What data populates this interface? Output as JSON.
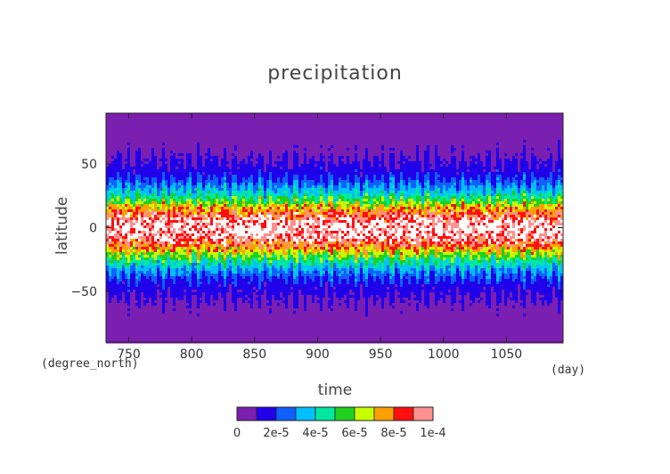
{
  "chart_data": {
    "type": "heatmap",
    "title": "precipitation",
    "xlabel": "time",
    "ylabel": "latitude",
    "x_units": "(day)",
    "y_units": "(degree_north)",
    "xlim": [
      732,
      1095
    ],
    "ylim": [
      -90,
      90
    ],
    "x_ticks": [
      750,
      800,
      850,
      900,
      950,
      1000,
      1050
    ],
    "y_ticks": [
      -50,
      0,
      50
    ],
    "colorbar": {
      "tick_labels": [
        "0",
        "2e-5",
        "4e-5",
        "6e-5",
        "8e-5",
        "1e-4"
      ],
      "levels": [
        0,
        1e-05,
        2e-05,
        3e-05,
        4e-05,
        5e-05,
        6e-05,
        7e-05,
        8e-05,
        9e-05,
        0.0001
      ],
      "colors": [
        "#7a1fb0",
        "#2000e8",
        "#1060ff",
        "#00c0ff",
        "#00e8a0",
        "#20d020",
        "#c8ff00",
        "#ffa000",
        "#ff1010",
        "#ff9090"
      ]
    },
    "latitude_profile": {
      "latitude": [
        -90,
        -70,
        -58,
        -50,
        -40,
        -32,
        -24,
        -16,
        -8,
        0,
        8,
        16,
        24,
        32,
        40,
        50,
        58,
        70,
        90
      ],
      "value": [
        5e-07,
        4e-06,
        9e-06,
        1.2e-05,
        1.8e-05,
        3.2e-05,
        5e-05,
        7.5e-05,
        9.5e-05,
        0.000105,
        9.5e-05,
        7.5e-05,
        5e-05,
        3.2e-05,
        1.8e-05,
        1.2e-05,
        9e-06,
        4e-06,
        5e-07
      ]
    }
  }
}
